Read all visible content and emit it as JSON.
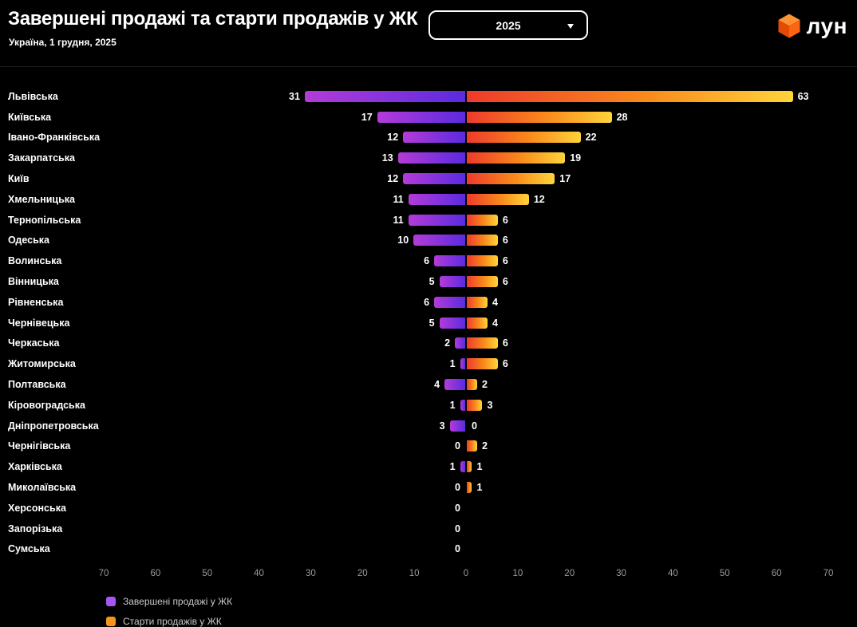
{
  "header": {
    "title": "Завершені продажі та старти продажів у ЖК",
    "subtitle": "Україна, 1 грудня, 2025",
    "year_selector": {
      "value": "2025"
    },
    "logo": {
      "text": "лун"
    }
  },
  "chart_data": {
    "type": "bar",
    "variant": "diverging-horizontal",
    "title": "Завершені продажі та старти продажів у ЖК",
    "categories": [
      "Львівська",
      "Київська",
      "Івано-Франківська",
      "Закарпатська",
      "Київ",
      "Хмельницька",
      "Тернопільська",
      "Одеська",
      "Волинська",
      "Вінницька",
      "Рівненська",
      "Чернівецька",
      "Черкаська",
      "Житомирська",
      "Полтавська",
      "Кіровоградська",
      "Дніпропетровська",
      "Чернігівська",
      "Харківська",
      "Миколаївська",
      "Херсонська",
      "Запорізька",
      "Сумська"
    ],
    "series": [
      {
        "name": "Завершені продажі у ЖК",
        "side": "left",
        "values": [
          31,
          17,
          12,
          13,
          12,
          11,
          11,
          10,
          6,
          5,
          6,
          5,
          2,
          1,
          4,
          1,
          3,
          0,
          1,
          0,
          0,
          0,
          0
        ],
        "gradient": [
          "#b43bd8",
          "#5a2be0"
        ]
      },
      {
        "name": "Старти продажів у ЖК",
        "side": "right",
        "values": [
          63,
          28,
          22,
          19,
          17,
          12,
          6,
          6,
          6,
          6,
          4,
          4,
          6,
          6,
          2,
          3,
          0,
          2,
          1,
          1,
          0,
          0,
          0
        ],
        "gradient": [
          "#ee3a2c",
          "#f98a1b",
          "#ffd43b"
        ]
      }
    ],
    "axis": {
      "max": 70,
      "ticks": [
        "70",
        "60",
        "50",
        "40",
        "30",
        "20",
        "10",
        "0",
        "10",
        "20",
        "30",
        "40",
        "50",
        "60",
        "70"
      ]
    },
    "legend_position": "bottom-left",
    "grid": false
  },
  "legend": {
    "items": [
      {
        "label": "Завершені продажі у ЖК",
        "color": "#a855f7"
      },
      {
        "label": "Старти продажів у ЖК",
        "color": "#f7941d"
      }
    ]
  }
}
